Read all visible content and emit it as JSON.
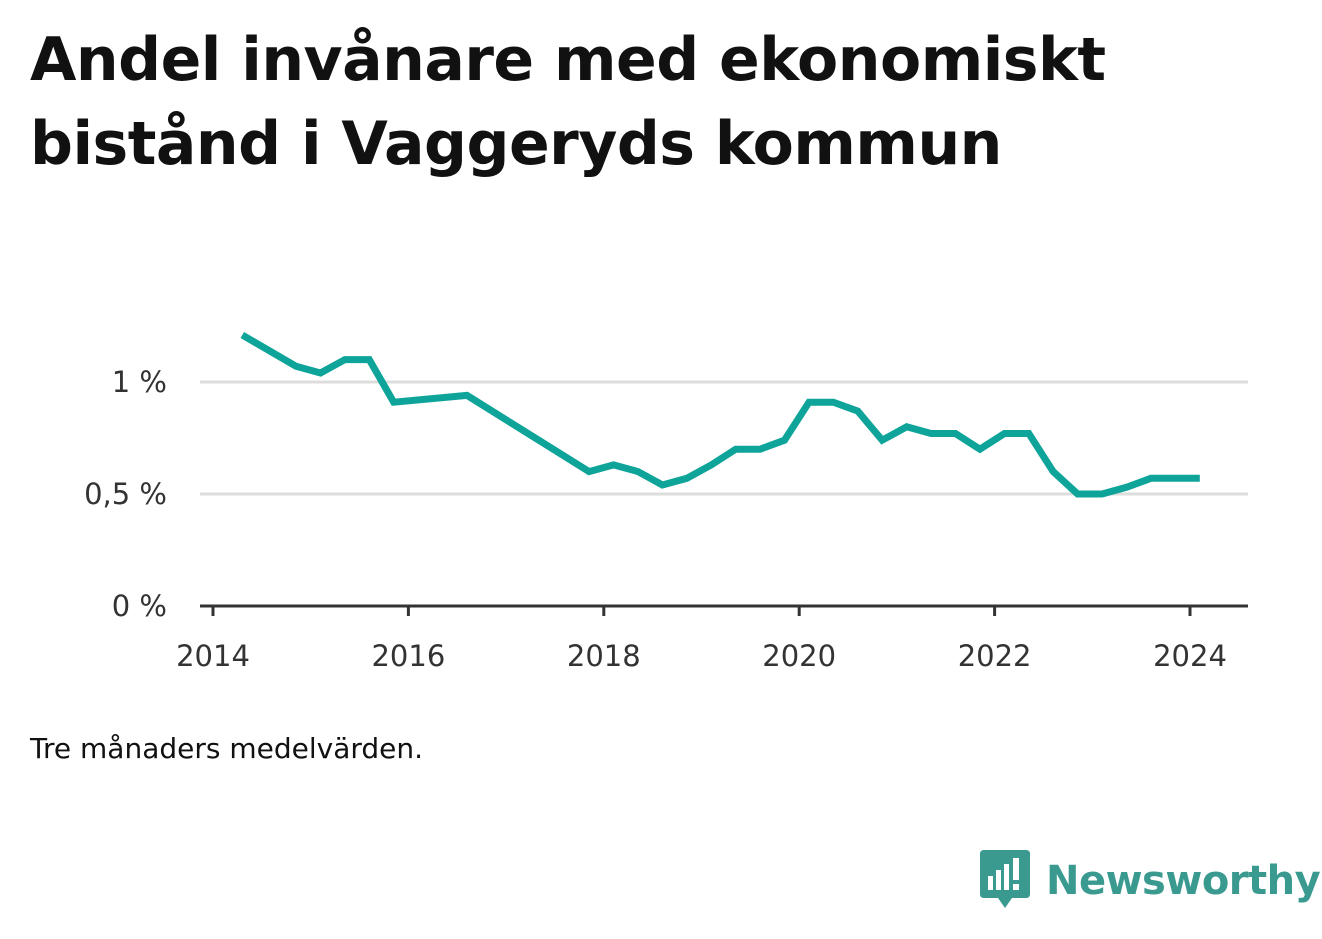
{
  "title": "Andel invånare med ekonomiskt bistånd i Vaggeryds kommun",
  "note": "Tre månaders medelvärden.",
  "brand": {
    "name": "Newsworthy",
    "icon": "newsworthy-logo-icon",
    "color": "#3a9a8f"
  },
  "colors": {
    "line": "#0ea49a",
    "grid": "#dddddd",
    "axis": "#333333",
    "text": "#111111"
  },
  "chart_data": {
    "type": "line",
    "title": "Andel invånare med ekonomiskt bistånd i Vaggeryds kommun",
    "xlabel": "",
    "ylabel": "",
    "xlim": [
      2014,
      2024.6
    ],
    "ylim": [
      0,
      1.25
    ],
    "x_ticks": [
      2014,
      2016,
      2018,
      2020,
      2022,
      2024
    ],
    "x_tick_labels": [
      "2014",
      "2016",
      "2018",
      "2020",
      "2022",
      "2024"
    ],
    "y_ticks": [
      0,
      0.5,
      1
    ],
    "y_tick_labels": [
      "0 %",
      "0,5 %",
      "1 %"
    ],
    "grid": "horizontal",
    "series": [
      {
        "color": "#0ea49a",
        "x": [
          2014.3,
          2014.85,
          2015.1,
          2015.35,
          2015.6,
          2015.85,
          2016.6,
          2017.85,
          2018.1,
          2018.35,
          2018.6,
          2018.85,
          2019.1,
          2019.35,
          2019.6,
          2019.85,
          2020.1,
          2020.35,
          2020.6,
          2020.85,
          2021.1,
          2021.35,
          2021.6,
          2021.85,
          2022.1,
          2022.35,
          2022.6,
          2022.85,
          2023.1,
          2023.35,
          2023.6,
          2023.85,
          2024.1
        ],
        "y": [
          1.21,
          1.07,
          1.04,
          1.1,
          1.1,
          0.91,
          0.94,
          0.6,
          0.63,
          0.6,
          0.54,
          0.57,
          0.63,
          0.7,
          0.7,
          0.74,
          0.91,
          0.91,
          0.87,
          0.74,
          0.8,
          0.77,
          0.77,
          0.7,
          0.77,
          0.77,
          0.6,
          0.5,
          0.5,
          0.53,
          0.57,
          0.57,
          0.57
        ]
      }
    ]
  }
}
